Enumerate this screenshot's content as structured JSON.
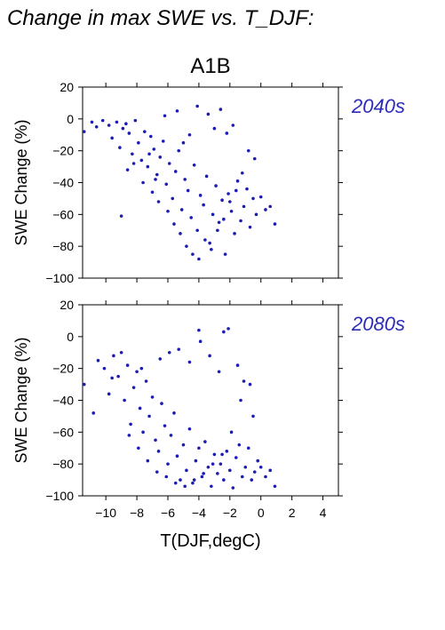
{
  "page_title": "Change in max SWE vs. T_DJF:",
  "scenario_title": "A1B",
  "colors": {
    "points": "#1c1cb4",
    "panel_label": "#2b2bb8",
    "axis": "#000000"
  },
  "chart_data": [
    {
      "type": "scatter",
      "panel_label": "2040s",
      "ylabel": "SWE Change (%)",
      "xlabel": "",
      "xlim": [
        -11.5,
        5
      ],
      "ylim": [
        -100,
        20
      ],
      "xticks": [
        -10,
        -8,
        -6,
        -4,
        -2,
        0,
        2,
        4
      ],
      "yticks": [
        20,
        0,
        -20,
        -40,
        -60,
        -80,
        -100
      ],
      "ytick_labels": [
        "20",
        "0",
        "−20",
        "−40",
        "−60",
        "−80",
        "−100"
      ],
      "x": [
        -11.4,
        -10.9,
        -10.6,
        -10.2,
        -9.8,
        -9.6,
        -9.3,
        -9.1,
        -8.9,
        -8.7,
        -8.5,
        -8.3,
        -8.1,
        -7.9,
        -7.7,
        -7.5,
        -7.3,
        -7.1,
        -6.9,
        -6.7,
        -6.5,
        -6.3,
        -6.1,
        -5.9,
        -5.7,
        -5.5,
        -5.3,
        -5.1,
        -4.9,
        -4.7,
        -4.5,
        -4.3,
        -4.1,
        -3.9,
        -3.7,
        -3.5,
        -3.3,
        -3.1,
        -2.9,
        -2.7,
        -2.5,
        -2.3,
        -2.1,
        -1.9,
        -1.7,
        -1.5,
        -1.3,
        -1.1,
        -0.9,
        -0.7,
        -0.5,
        -0.3,
        0.0,
        0.3,
        0.6,
        0.9,
        -8.6,
        -8.2,
        -7.6,
        -7.0,
        -6.6,
        -6.0,
        -5.6,
        -5.2,
        -4.8,
        -4.4,
        -4.0,
        -3.6,
        -3.2,
        -2.8,
        -2.4,
        -2.0,
        -1.6,
        -1.2,
        -0.8,
        -4.1,
        -2.6,
        -6.2,
        -5.4,
        -3.4,
        -4.6,
        -3.0,
        -5.0,
        -2.2,
        -1.8,
        -0.4,
        -6.8,
        -7.2,
        -9.0
      ],
      "y": [
        -8,
        -2,
        -5,
        -1,
        -4,
        -12,
        -2,
        -18,
        -6,
        -3,
        -9,
        -22,
        -1,
        -15,
        -26,
        -8,
        -30,
        -11,
        -19,
        -35,
        -24,
        -14,
        -41,
        -28,
        -50,
        -33,
        -20,
        -57,
        -38,
        -45,
        -62,
        -29,
        -70,
        -48,
        -54,
        -36,
        -78,
        -60,
        -42,
        -65,
        -51,
        -85,
        -47,
        -58,
        -72,
        -39,
        -64,
        -55,
        -44,
        -68,
        -50,
        -60,
        -49,
        -57,
        -55,
        -66,
        -32,
        -28,
        -40,
        -46,
        -52,
        -58,
        -66,
        -72,
        -80,
        -85,
        -88,
        -76,
        -82,
        -70,
        -63,
        -52,
        -45,
        -34,
        -20,
        8,
        6,
        2,
        5,
        3,
        -10,
        -6,
        -15,
        -9,
        -4,
        -25,
        -38,
        -22,
        -61
      ]
    },
    {
      "type": "scatter",
      "panel_label": "2080s",
      "ylabel": "SWE Change (%)",
      "xlabel": "T(DJF,degC)",
      "xlim": [
        -11.5,
        5
      ],
      "ylim": [
        -100,
        20
      ],
      "xticks": [
        -10,
        -8,
        -6,
        -4,
        -2,
        0,
        2,
        4
      ],
      "xtick_labels": [
        "−10",
        "−8",
        "−6",
        "−4",
        "−2",
        "0",
        "2",
        "4"
      ],
      "yticks": [
        20,
        0,
        -20,
        -40,
        -60,
        -80,
        -100
      ],
      "ytick_labels": [
        "20",
        "0",
        "−20",
        "−40",
        "−60",
        "−80",
        "−100"
      ],
      "x": [
        -11.4,
        -10.8,
        -10.5,
        -10.1,
        -9.8,
        -9.5,
        -9.2,
        -9.0,
        -8.8,
        -8.6,
        -8.4,
        -8.2,
        -8.0,
        -7.8,
        -7.6,
        -7.4,
        -7.2,
        -7.0,
        -6.8,
        -6.6,
        -6.4,
        -6.2,
        -6.0,
        -5.8,
        -5.6,
        -5.4,
        -5.2,
        -5.0,
        -4.8,
        -4.6,
        -4.4,
        -4.2,
        -4.0,
        -3.8,
        -3.6,
        -3.4,
        -3.2,
        -3.0,
        -2.8,
        -2.6,
        -2.4,
        -2.2,
        -2.0,
        -1.8,
        -1.6,
        -1.4,
        -1.2,
        -1.0,
        -0.8,
        -0.6,
        -0.4,
        -0.2,
        0.0,
        0.3,
        0.6,
        0.9,
        -8.5,
        -7.9,
        -7.3,
        -6.7,
        -6.1,
        -5.5,
        -4.9,
        -4.3,
        -3.7,
        -3.1,
        -2.5,
        -1.9,
        -1.3,
        -0.7,
        -4.0,
        -3.9,
        -2.4,
        -2.1,
        -1.5,
        -5.3,
        -6.5,
        -7.7,
        -9.6,
        -3.3,
        -2.7,
        -4.6,
        -5.9,
        -1.1,
        -0.5
      ],
      "y": [
        -30,
        -48,
        -15,
        -20,
        -36,
        -12,
        -25,
        -10,
        -40,
        -18,
        -55,
        -32,
        -22,
        -45,
        -60,
        -28,
        -50,
        -38,
        -65,
        -72,
        -42,
        -56,
        -80,
        -62,
        -48,
        -75,
        -90,
        -68,
        -84,
        -58,
        -92,
        -78,
        -70,
        -88,
        -66,
        -82,
        -94,
        -74,
        -86,
        -80,
        -90,
        -72,
        -84,
        -95,
        -76,
        -68,
        -88,
        -82,
        -70,
        -90,
        -85,
        -78,
        -82,
        -88,
        -84,
        -94,
        -62,
        -70,
        -78,
        -85,
        -88,
        -92,
        -94,
        -90,
        -86,
        -80,
        -74,
        -60,
        -40,
        -30,
        4,
        -3,
        3,
        5,
        -18,
        -8,
        -14,
        -20,
        -26,
        -12,
        -22,
        -16,
        -10,
        -28,
        -50
      ]
    }
  ]
}
